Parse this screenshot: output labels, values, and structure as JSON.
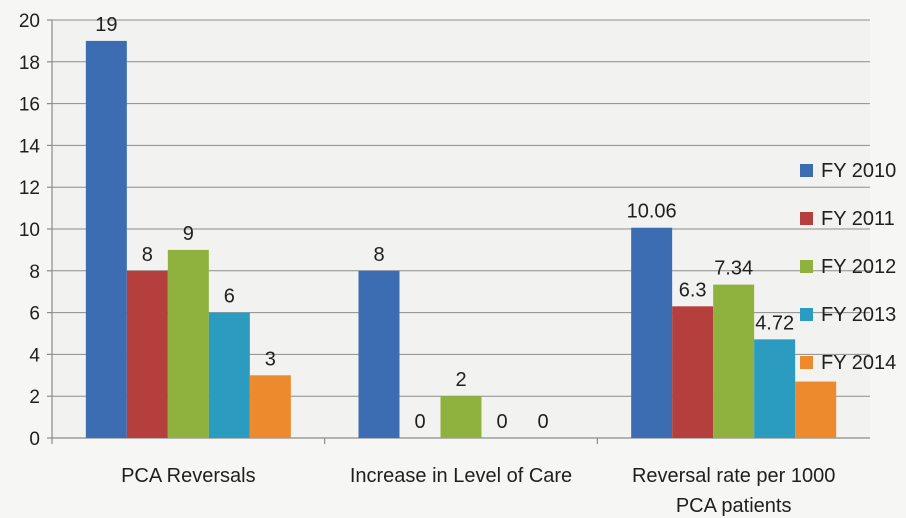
{
  "chart_data": {
    "type": "bar",
    "categories": [
      [
        "PCA Reversals"
      ],
      [
        "Increase in Level of Care"
      ],
      [
        "Reversal rate per 1000",
        "PCA patients"
      ]
    ],
    "series": [
      {
        "name": "FY 2010",
        "color": "#3c6db3",
        "values": [
          19,
          8,
          10.06
        ],
        "labels": [
          "19",
          "8",
          "10.06"
        ]
      },
      {
        "name": "FY 2011",
        "color": "#b53f3c",
        "values": [
          8,
          0,
          6.3
        ],
        "labels": [
          "8",
          "0",
          "6.3"
        ]
      },
      {
        "name": "FY 2012",
        "color": "#8fb23f",
        "values": [
          9,
          2,
          7.34
        ],
        "labels": [
          "9",
          "2",
          "7.34"
        ]
      },
      {
        "name": "FY 2013",
        "color": "#2b9bbf",
        "values": [
          6,
          0,
          4.72
        ],
        "labels": [
          "6",
          "0",
          "4.72"
        ]
      },
      {
        "name": "FY 2014",
        "color": "#ee8a2e",
        "values": [
          3,
          0,
          2.7
        ],
        "labels": [
          "3",
          "0",
          ""
        ]
      }
    ],
    "ylim": [
      0,
      20
    ],
    "yticks": [
      0,
      2,
      4,
      6,
      8,
      10,
      12,
      14,
      16,
      18,
      20
    ],
    "grid": true,
    "legend_position": "right"
  }
}
